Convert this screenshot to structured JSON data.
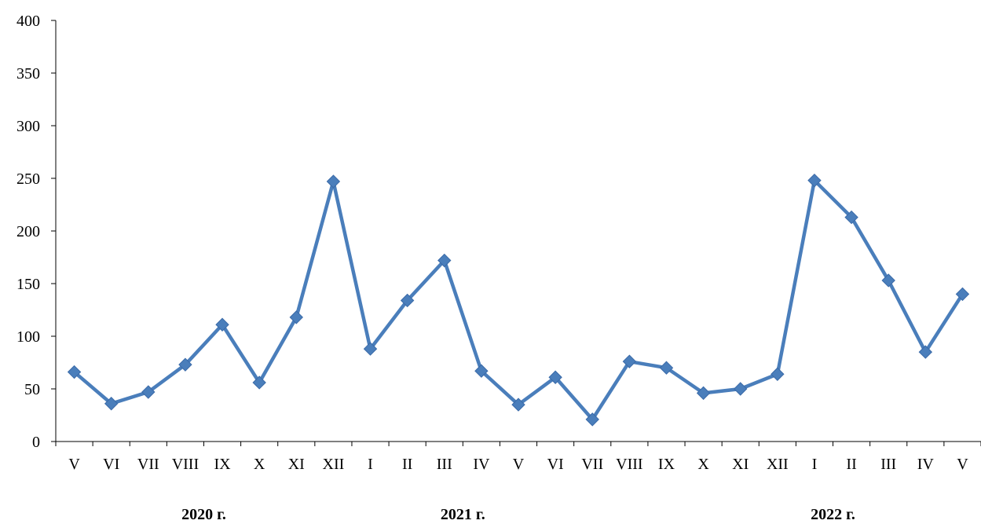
{
  "chart_data": {
    "type": "line",
    "title": "",
    "xlabel": "",
    "ylabel": "",
    "ylim": [
      0,
      400
    ],
    "yticks": [
      "0",
      "50",
      "100",
      "150",
      "200",
      "250",
      "300",
      "350",
      "400"
    ],
    "grid": false,
    "legend": "none",
    "line_color": "#4a7ebb",
    "categories": [
      "V",
      "VI",
      "VII",
      "VIII",
      "IX",
      "X",
      "XI",
      "XII",
      "I",
      "II",
      "III",
      "IV",
      "V",
      "VI",
      "VII",
      "VIII",
      "IX",
      "X",
      "XI",
      "XII",
      "I",
      "II",
      "III",
      "IV",
      "V"
    ],
    "values": [
      66,
      36,
      47,
      73,
      111,
      56,
      118,
      247,
      88,
      134,
      172,
      67,
      35,
      61,
      21,
      76,
      70,
      46,
      50,
      64,
      248,
      213,
      153,
      85,
      140
    ],
    "year_labels": [
      {
        "label": "2020 г.",
        "category_index": 3.5
      },
      {
        "label": "2021 г.",
        "category_index": 10.5
      },
      {
        "label": "2022 г.",
        "category_index": 20.5
      }
    ]
  }
}
